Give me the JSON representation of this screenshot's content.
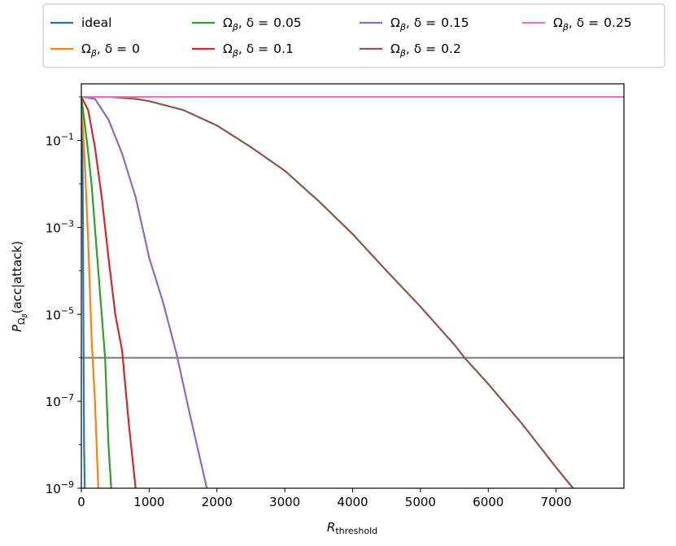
{
  "chart_data": {
    "type": "line",
    "title": "",
    "xlabel": "R",
    "xlabel_sub": "threshold",
    "ylabel": "P",
    "ylabel_sub": "Ω",
    "ylabel_subsub": "β",
    "ylabel_rest": "(acc|attack)",
    "x_scale": "linear",
    "y_scale": "log",
    "xlim": [
      0,
      8000
    ],
    "ylim": [
      1e-09,
      2
    ],
    "x_ticks": [
      0,
      1000,
      2000,
      3000,
      4000,
      5000,
      6000,
      7000
    ],
    "x_tick_labels": [
      "0",
      "1000",
      "2000",
      "3000",
      "4000",
      "5000",
      "6000",
      "7000"
    ],
    "y_ticks": [
      1e-09,
      1e-07,
      1e-05,
      0.001,
      0.1
    ],
    "y_tick_base": [
      "10",
      "10",
      "10",
      "10",
      "10"
    ],
    "y_tick_exponents": [
      "−9",
      "−7",
      "−5",
      "−3",
      "−1"
    ],
    "grid": false,
    "legend_position": "top",
    "threshold_line": {
      "y": 1e-06,
      "color": "#7f7f7f"
    },
    "series": [
      {
        "label_plain": "ideal",
        "color": "#1f77b4",
        "x": [
          0,
          1,
          10,
          20,
          30,
          40,
          50
        ],
        "y": [
          1,
          1,
          0.5,
          0.01,
          1e-05,
          1e-08,
          1e-09
        ]
      },
      {
        "label_prefix": "Ω",
        "label_sub": "β",
        "label_mid": ", δ =",
        "label_value": "0",
        "color": "#ff7f0e",
        "x": [
          0,
          50,
          100,
          150,
          200,
          250
        ],
        "y": [
          1,
          0.03,
          0.0005,
          3e-06,
          1e-07,
          1e-09
        ]
      },
      {
        "label_prefix": "Ω",
        "label_sub": "β",
        "label_mid": ", δ =",
        "label_value": "0.05",
        "color": "#2ca02c",
        "x": [
          0,
          80,
          150,
          200,
          250,
          300,
          350,
          400,
          440
        ],
        "y": [
          1,
          0.1,
          0.01,
          0.001,
          0.0001,
          1e-05,
          1e-06,
          1e-08,
          1e-09
        ]
      },
      {
        "label_prefix": "Ω",
        "label_sub": "β",
        "label_mid": ", δ =",
        "label_value": "0.1",
        "color": "#d62728",
        "x": [
          0,
          100,
          200,
          300,
          400,
          500,
          600,
          700,
          800
        ],
        "y": [
          1,
          0.5,
          0.07,
          0.005,
          0.0002,
          1e-05,
          1.5e-06,
          3e-08,
          1e-09
        ]
      },
      {
        "label_prefix": "Ω",
        "label_sub": "β",
        "label_mid": ", δ =",
        "label_value": "0.15",
        "color": "#9467bd",
        "x": [
          0,
          200,
          400,
          600,
          800,
          1000,
          1200,
          1400,
          1600,
          1850
        ],
        "y": [
          1,
          0.9,
          0.3,
          0.05,
          0.005,
          0.0002,
          2e-05,
          1.3e-06,
          5e-08,
          1e-09
        ]
      },
      {
        "label_prefix": "Ω",
        "label_sub": "β",
        "label_mid": ", δ =",
        "label_value": "0.2",
        "color": "#8c564b",
        "x": [
          0,
          400,
          800,
          1000,
          1500,
          2000,
          2500,
          3000,
          3500,
          4000,
          4500,
          5000,
          5500,
          5650,
          6000,
          6500,
          7000,
          7250
        ],
        "y": [
          1,
          1,
          0.9,
          0.8,
          0.5,
          0.22,
          0.07,
          0.02,
          0.004,
          0.0007,
          0.0001,
          1.5e-05,
          2e-06,
          1e-06,
          2.5e-07,
          3e-08,
          3e-09,
          1e-09
        ]
      },
      {
        "label_prefix": "Ω",
        "label_sub": "β",
        "label_mid": ", δ =",
        "label_value": "0.25",
        "color": "#e377c2",
        "x": [
          0,
          8000
        ],
        "y": [
          1,
          1
        ]
      }
    ]
  }
}
